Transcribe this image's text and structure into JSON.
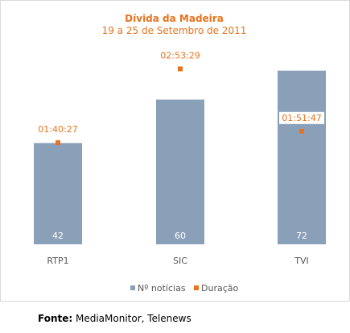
{
  "chart_data": {
    "type": "bar",
    "title": "Dívida da Madeira",
    "subtitle": "19 a 25 de Setembro de 2011",
    "categories": [
      "RTP1",
      "SIC",
      "TVI"
    ],
    "series": [
      {
        "name": "Nº notícias",
        "type": "bar",
        "color": "#8a9fb8",
        "values": [
          42,
          60,
          72
        ],
        "labels": [
          "42",
          "60",
          "72"
        ]
      },
      {
        "name": "Duração",
        "type": "marker",
        "color": "#e8731e",
        "values_seconds": [
          6027,
          10409,
          6707
        ],
        "labels": [
          "01:40:27",
          "02:53:29",
          "01:51:47"
        ]
      }
    ],
    "bar_axis_range": [
      0,
      85.26
    ],
    "marker_axis_range": [
      0,
      12200
    ],
    "grid": false,
    "legend_position": "bottom"
  },
  "source": {
    "label": "Fonte:",
    "text": " MediaMonitor, Telenews"
  }
}
